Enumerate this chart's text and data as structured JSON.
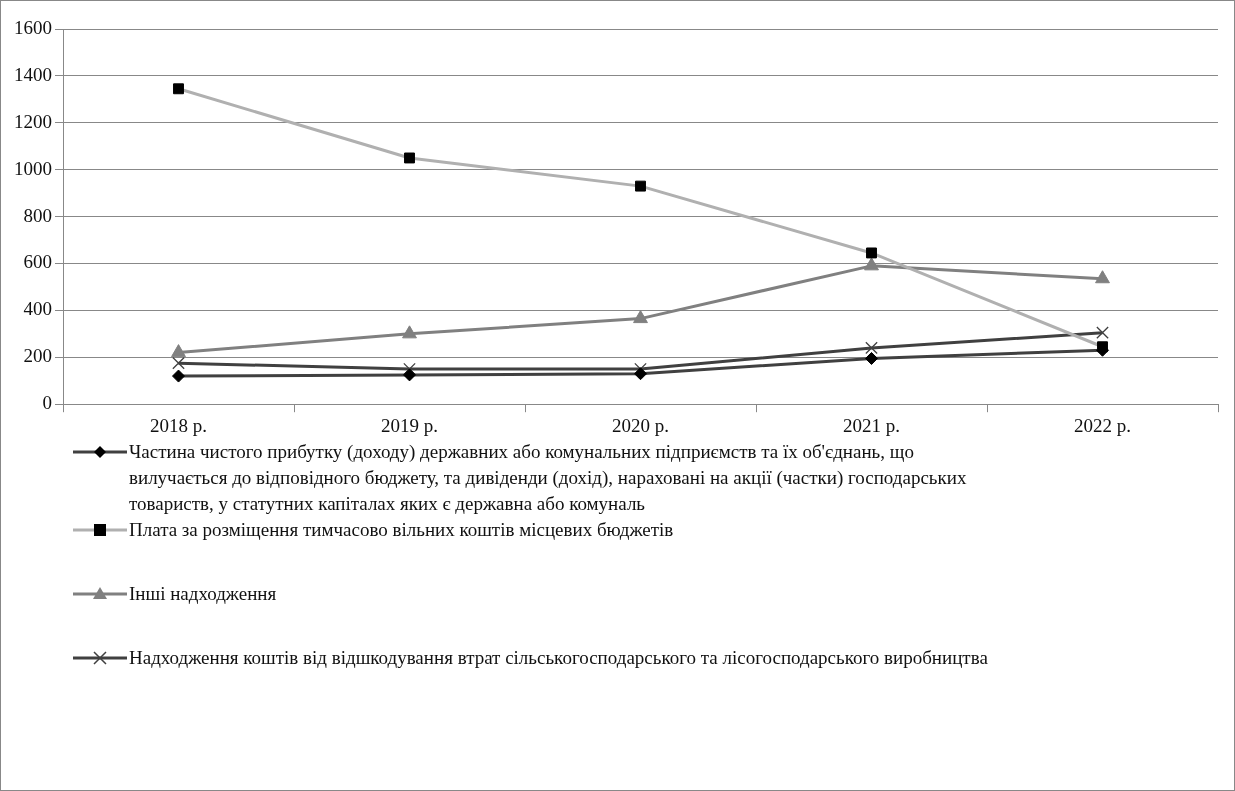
{
  "chart_data": {
    "type": "line",
    "categories": [
      "2018 р.",
      "2019 р.",
      "2020 р.",
      "2021 р.",
      "2022 р."
    ],
    "ylim": [
      0,
      1600
    ],
    "yticks": [
      0,
      200,
      400,
      600,
      800,
      1000,
      1200,
      1400,
      1600
    ],
    "grid": "y",
    "legend": "bottom",
    "series": [
      {
        "name": "Частина чистого прибутку (доходу) державних або комунальних  підприємств та їх об'єднань, що вилучається до відповідного  бюджету,  та дивіденди  (дохід), нараховані на акції  (частки) господарських товариств, у статутних капіталах яких є державна або комуналь",
        "color": "#404040",
        "marker": "diamond",
        "values": [
          120,
          125,
          130,
          195,
          230
        ]
      },
      {
        "name": "Плата за розміщення тимчасово вільних  коштів  місцевих бюджетів",
        "color": "#b0b0b0",
        "marker": "square",
        "values": [
          1345,
          1050,
          930,
          645,
          245
        ]
      },
      {
        "name": "Інші надходження",
        "color": "#808080",
        "marker": "triangle",
        "values": [
          220,
          300,
          365,
          590,
          535
        ]
      },
      {
        "name": "Надходження  коштів  від  відшкодування  втрат  сільськогосподарського та лісогосподарського виробництва",
        "color": "#404040",
        "marker": "cross",
        "values": [
          175,
          150,
          150,
          240,
          305
        ]
      }
    ]
  }
}
